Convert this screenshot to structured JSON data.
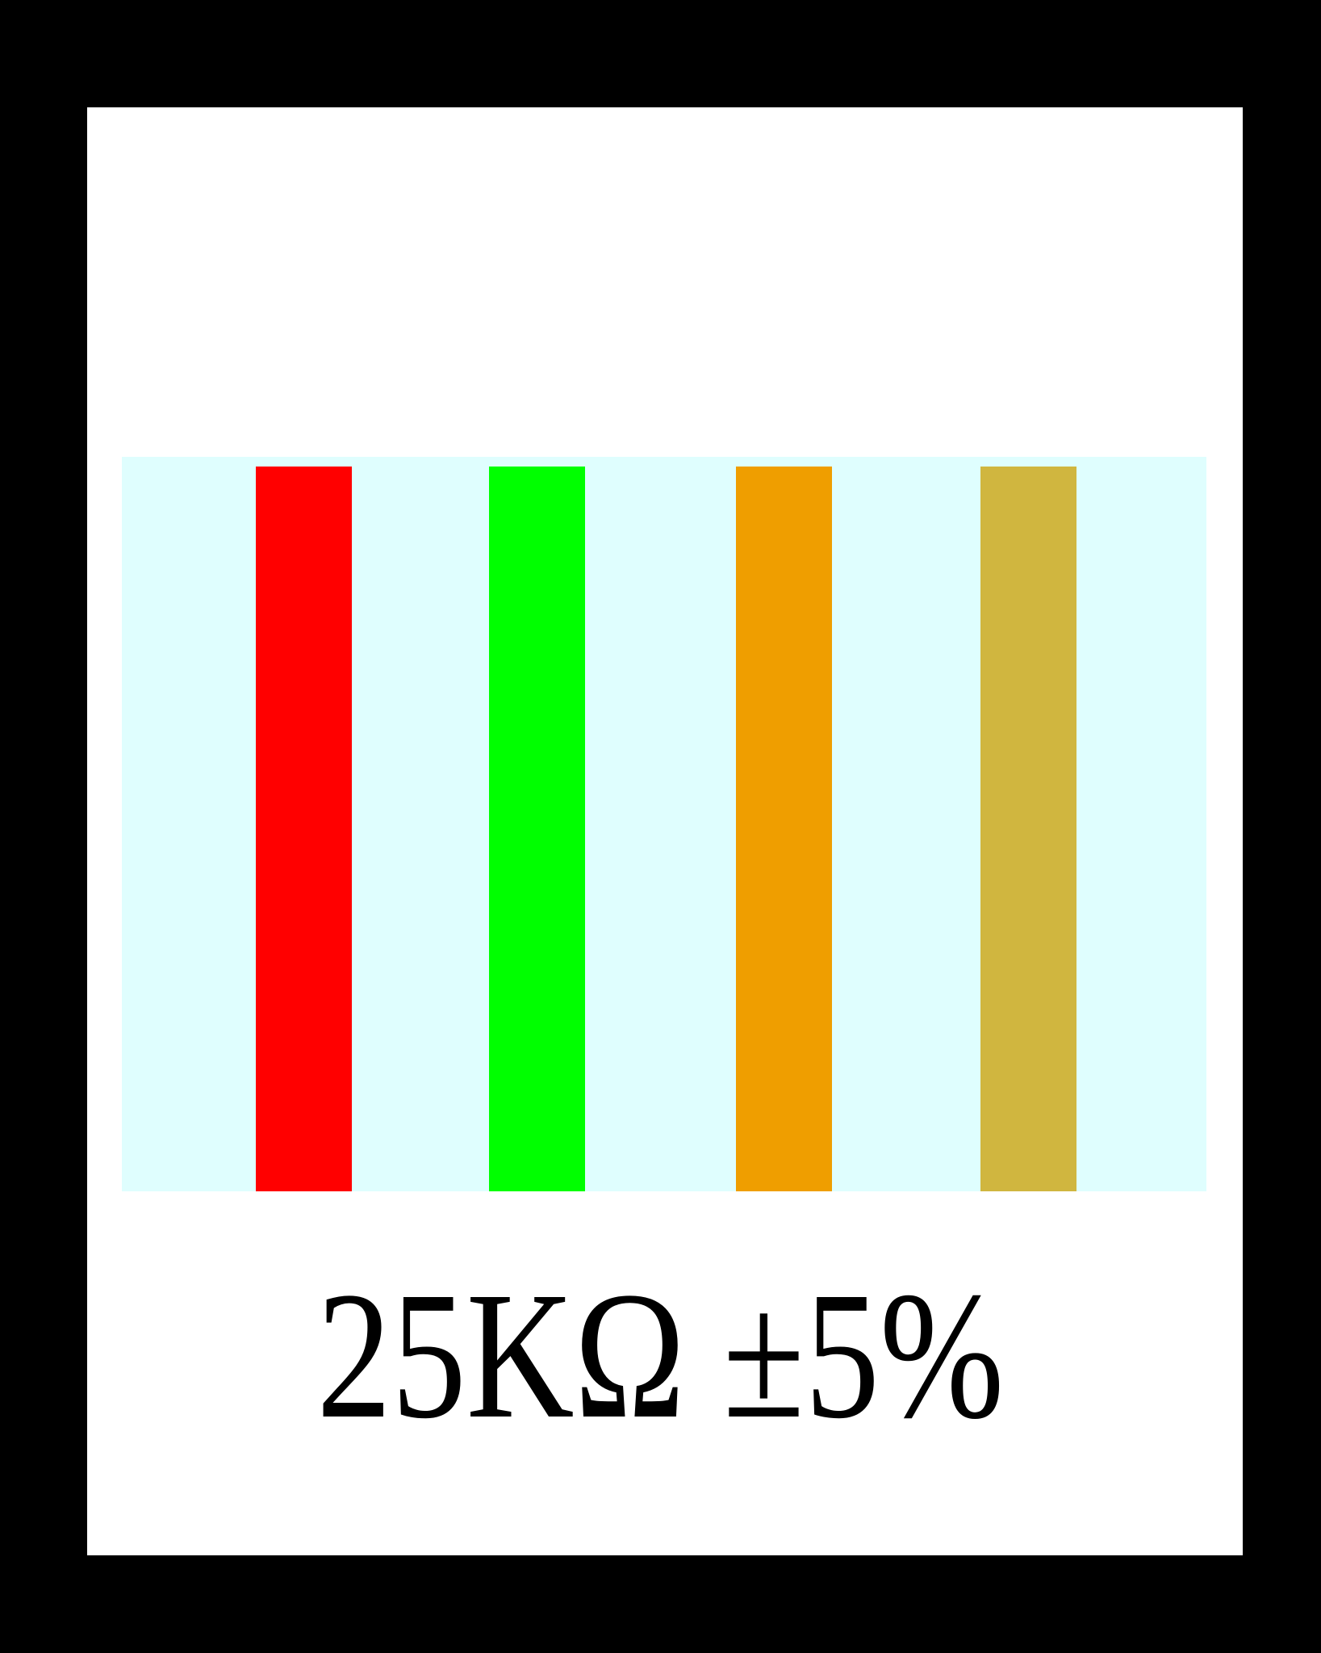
{
  "resistor": {
    "body_color": "#dffefe",
    "bands": [
      {
        "name": "red",
        "color": "#ff0000"
      },
      {
        "name": "green",
        "color": "#00ff00"
      },
      {
        "name": "orange",
        "color": "#ef9e00"
      },
      {
        "name": "gold",
        "color": "#d0b63f"
      }
    ],
    "label": "25KΩ ±5%"
  }
}
